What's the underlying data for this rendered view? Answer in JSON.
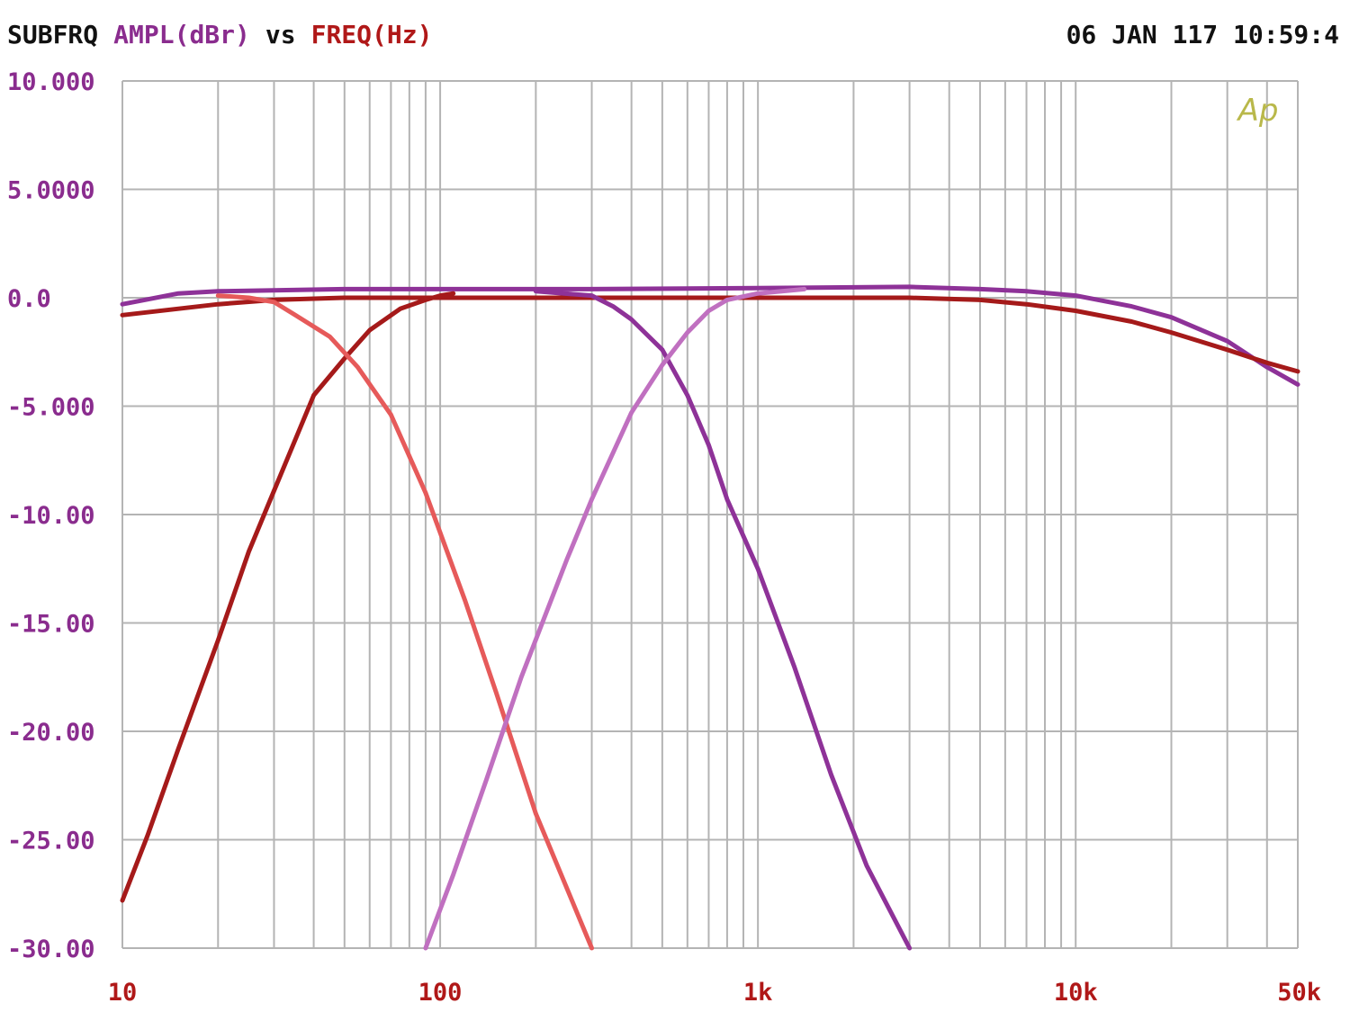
{
  "header": {
    "title": "SUBFRQ",
    "y_quantity": "AMPL(dBr)",
    "vs": "vs",
    "x_quantity": "FREQ(Hz)",
    "timestamp": "06 JAN 117 10:59:4"
  },
  "logo": "Ap",
  "colors": {
    "background": "#ffffff",
    "grid": "#b4b4b4",
    "title_text": "#111111",
    "y_label": "#8a2c8e",
    "x_label": "#b01818",
    "logo": "#b9b84a",
    "dark_red": "#a51a1a",
    "salmon_red": "#e65a5a",
    "purple": "#8e3298",
    "light_purple": "#c070c0"
  },
  "chart_data": {
    "type": "line",
    "title": "SUBFRQ AMPL(dBr) vs FREQ(Hz)",
    "xlabel": "FREQ(Hz)",
    "ylabel": "AMPL(dBr)",
    "x_scale": "log",
    "xlim": [
      10,
      50000
    ],
    "ylim": [
      -30,
      10
    ],
    "grid": true,
    "y_ticks": [
      {
        "value": 10,
        "label": "10.000"
      },
      {
        "value": 5,
        "label": "5.0000"
      },
      {
        "value": 0,
        "label": "0.0"
      },
      {
        "value": -5,
        "label": "-5.000"
      },
      {
        "value": -10,
        "label": "-10.00"
      },
      {
        "value": -15,
        "label": "-15.00"
      },
      {
        "value": -20,
        "label": "-20.00"
      },
      {
        "value": -25,
        "label": "-25.00"
      },
      {
        "value": -30,
        "label": "-30.00"
      }
    ],
    "x_ticks": [
      {
        "value": 10,
        "label": "10"
      },
      {
        "value": 100,
        "label": "100"
      },
      {
        "value": 1000,
        "label": "1k"
      },
      {
        "value": 10000,
        "label": "10k"
      },
      {
        "value": 50000,
        "label": "50k"
      }
    ],
    "series": [
      {
        "color": "#8e3298",
        "points": [
          [
            10,
            -0.3
          ],
          [
            15,
            0.2
          ],
          [
            20,
            0.3
          ],
          [
            50,
            0.4
          ],
          [
            100,
            0.4
          ],
          [
            300,
            0.4
          ],
          [
            1000,
            0.45
          ],
          [
            3000,
            0.5
          ],
          [
            5000,
            0.4
          ],
          [
            7000,
            0.3
          ],
          [
            10000,
            0.1
          ],
          [
            15000,
            -0.4
          ],
          [
            20000,
            -0.9
          ],
          [
            30000,
            -2.0
          ],
          [
            40000,
            -3.2
          ],
          [
            50000,
            -4.0
          ]
        ]
      },
      {
        "color": "#a51a1a",
        "points": [
          [
            10,
            -0.8
          ],
          [
            20,
            -0.3
          ],
          [
            30,
            -0.1
          ],
          [
            50,
            0.0
          ],
          [
            100,
            0.0
          ],
          [
            1000,
            0.0
          ],
          [
            3000,
            0.0
          ],
          [
            5000,
            -0.1
          ],
          [
            7000,
            -0.3
          ],
          [
            10000,
            -0.6
          ],
          [
            15000,
            -1.1
          ],
          [
            20000,
            -1.6
          ],
          [
            30000,
            -2.4
          ],
          [
            40000,
            -3.0
          ],
          [
            50000,
            -3.4
          ]
        ]
      },
      {
        "color": "#a51a1a",
        "points": [
          [
            10,
            -27.8
          ],
          [
            12,
            -24.8
          ],
          [
            15,
            -20.8
          ],
          [
            20,
            -15.8
          ],
          [
            25,
            -11.7
          ],
          [
            30,
            -8.9
          ],
          [
            40,
            -4.5
          ],
          [
            50,
            -2.8
          ],
          [
            60,
            -1.5
          ],
          [
            75,
            -0.5
          ],
          [
            90,
            -0.1
          ],
          [
            100,
            0.1
          ],
          [
            110,
            0.2
          ]
        ]
      },
      {
        "color": "#e65a5a",
        "points": [
          [
            20,
            0.1
          ],
          [
            25,
            0.0
          ],
          [
            30,
            -0.2
          ],
          [
            35,
            -0.8
          ],
          [
            45,
            -1.8
          ],
          [
            55,
            -3.2
          ],
          [
            70,
            -5.4
          ],
          [
            90,
            -9.0
          ],
          [
            120,
            -14.0
          ],
          [
            150,
            -18.2
          ],
          [
            200,
            -23.8
          ],
          [
            300,
            -30
          ]
        ]
      },
      {
        "color": "#8e3298",
        "points": [
          [
            200,
            0.3
          ],
          [
            300,
            0.1
          ],
          [
            350,
            -0.4
          ],
          [
            400,
            -1.0
          ],
          [
            500,
            -2.4
          ],
          [
            600,
            -4.5
          ],
          [
            700,
            -6.8
          ],
          [
            800,
            -9.3
          ],
          [
            1000,
            -12.5
          ],
          [
            1300,
            -17.0
          ],
          [
            1700,
            -22.0
          ],
          [
            2200,
            -26.2
          ],
          [
            3000,
            -30
          ]
        ]
      },
      {
        "color": "#c070c0",
        "points": [
          [
            90,
            -30
          ],
          [
            110,
            -26.6
          ],
          [
            140,
            -22.2
          ],
          [
            180,
            -17.5
          ],
          [
            250,
            -12.1
          ],
          [
            300,
            -9.3
          ],
          [
            400,
            -5.3
          ],
          [
            500,
            -3.1
          ],
          [
            600,
            -1.6
          ],
          [
            700,
            -0.6
          ],
          [
            800,
            -0.1
          ],
          [
            1000,
            0.2
          ],
          [
            1400,
            0.4
          ]
        ]
      }
    ]
  }
}
